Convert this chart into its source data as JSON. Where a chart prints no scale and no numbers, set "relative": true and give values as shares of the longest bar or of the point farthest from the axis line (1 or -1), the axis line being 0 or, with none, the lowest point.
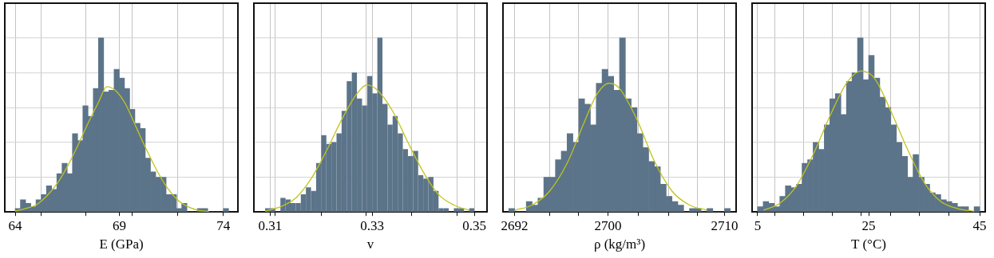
{
  "chart_data": [
    {
      "type": "histogram",
      "xlabel": "E (GPa)",
      "relative": true,
      "grid": true,
      "legend": false,
      "xlim": [
        63.5,
        74.7
      ],
      "xticks": [
        64,
        {
          "value": 65.25,
          "label": null
        },
        {
          "value": 67.4,
          "label": null
        },
        69,
        {
          "value": 69.6,
          "label": null
        },
        {
          "value": 71.8,
          "label": null
        },
        74
      ],
      "series": [
        {
          "type": "histogram",
          "color": "#5c7489",
          "bins": [
            64,
            64.25,
            64.5,
            64.75,
            65,
            65.25,
            65.5,
            65.75,
            66,
            66.25,
            66.5,
            66.75,
            67,
            67.25,
            67.5,
            67.75,
            68,
            68.25,
            68.5,
            68.75,
            69,
            69.25,
            69.5,
            69.75,
            70,
            70.25,
            70.5,
            70.75,
            71,
            71.25,
            71.5,
            71.75,
            72,
            72.25,
            72.5,
            72.75,
            73,
            73.25,
            73.5,
            73.75,
            74,
            74.25
          ],
          "values": [
            0.02,
            0.07,
            0.05,
            0.03,
            0.07,
            0.1,
            0.15,
            0.13,
            0.22,
            0.28,
            0.22,
            0.45,
            0.41,
            0.61,
            0.55,
            0.71,
            1.0,
            0.69,
            0.7,
            0.82,
            0.77,
            0.71,
            0.59,
            0.51,
            0.48,
            0.31,
            0.23,
            0.2,
            0.2,
            0.1,
            0.1,
            0.02,
            0.05,
            0,
            0,
            0.02,
            0.02,
            0,
            0,
            0,
            0.02
          ]
        },
        {
          "type": "line",
          "color": "#c2c41c",
          "x": [
            64,
            64.5,
            65,
            65.5,
            66,
            66.5,
            67,
            67.5,
            68,
            68.4,
            68.8,
            69.3,
            69.8,
            70.3,
            70.8,
            71.3,
            71.8,
            72.3,
            72.8,
            73.3
          ],
          "values": [
            0.005,
            0.02,
            0.04,
            0.09,
            0.16,
            0.26,
            0.38,
            0.51,
            0.63,
            0.72,
            0.7,
            0.62,
            0.49,
            0.36,
            0.24,
            0.14,
            0.07,
            0.03,
            0.01,
            0.003
          ]
        }
      ]
    },
    {
      "type": "histogram",
      "xlabel": "v",
      "relative": true,
      "grid": true,
      "legend": false,
      "xlim": [
        0.3068,
        0.3525
      ],
      "xticks": [
        0.31,
        {
          "value": 0.3109,
          "label": null
        },
        {
          "value": 0.32,
          "label": null
        },
        {
          "value": 0.3288,
          "label": null
        },
        0.33,
        {
          "value": 0.3377,
          "label": null
        },
        {
          "value": 0.3466,
          "label": null
        },
        0.35
      ],
      "series": [
        {
          "type": "histogram",
          "color": "#5c7489",
          "bins": [
            0.309,
            0.31,
            0.311,
            0.312,
            0.313,
            0.314,
            0.315,
            0.316,
            0.317,
            0.318,
            0.319,
            0.32,
            0.321,
            0.322,
            0.323,
            0.324,
            0.325,
            0.326,
            0.327,
            0.328,
            0.329,
            0.33,
            0.331,
            0.332,
            0.333,
            0.334,
            0.335,
            0.336,
            0.337,
            0.338,
            0.339,
            0.34,
            0.341,
            0.342,
            0.343,
            0.344,
            0.345,
            0.346,
            0.347,
            0.348,
            0.349,
            0.35
          ],
          "values": [
            0.02,
            0.02,
            0,
            0.08,
            0.07,
            0.05,
            0.05,
            0.1,
            0.14,
            0.12,
            0.28,
            0.44,
            0.39,
            0.4,
            0.45,
            0.58,
            0.75,
            0.8,
            0.65,
            0.61,
            0.78,
            0.68,
            1.0,
            0.62,
            0.5,
            0.55,
            0.45,
            0.36,
            0.32,
            0.35,
            0.21,
            0.19,
            0.2,
            0.12,
            0.02,
            0.02,
            0,
            0.02,
            0.02,
            0,
            0.02
          ]
        },
        {
          "type": "line",
          "color": "#c2c41c",
          "x": [
            0.309,
            0.312,
            0.315,
            0.318,
            0.321,
            0.324,
            0.327,
            0.329,
            0.331,
            0.334,
            0.337,
            0.34,
            0.343,
            0.346,
            0.349
          ],
          "values": [
            0.005,
            0.03,
            0.08,
            0.19,
            0.35,
            0.53,
            0.68,
            0.73,
            0.7,
            0.58,
            0.4,
            0.23,
            0.1,
            0.04,
            0.01
          ]
        }
      ]
    },
    {
      "type": "histogram",
      "xlabel": "ρ (kg/m³)",
      "relative": true,
      "grid": true,
      "legend": false,
      "xlim": [
        2691,
        2711
      ],
      "xticks": [
        2692,
        {
          "value": 2695,
          "label": null
        },
        {
          "value": 2697.5,
          "label": null
        },
        2700,
        {
          "value": 2702.6,
          "label": null
        },
        {
          "value": 2705.2,
          "label": null
        },
        {
          "value": 2707.7,
          "label": null
        },
        2710
      ],
      "series": [
        {
          "type": "histogram",
          "color": "#5c7489",
          "bins": [
            2691.5,
            2692,
            2692.5,
            2693,
            2693.5,
            2694,
            2694.5,
            2695,
            2695.5,
            2696,
            2696.5,
            2697,
            2697.5,
            2698,
            2698.5,
            2699,
            2699.5,
            2700,
            2700.5,
            2701,
            2701.5,
            2702,
            2702.5,
            2703,
            2703.5,
            2704,
            2704.5,
            2705,
            2705.5,
            2706,
            2706.5,
            2707,
            2707.5,
            2708,
            2708.5,
            2709,
            2709.5,
            2710,
            2710.5
          ],
          "values": [
            0.02,
            0,
            0,
            0.06,
            0.04,
            0.08,
            0.2,
            0.2,
            0.3,
            0.35,
            0.45,
            0.4,
            0.65,
            0.62,
            0.5,
            0.74,
            0.82,
            0.78,
            0.7,
            1.0,
            0.65,
            0.6,
            0.45,
            0.37,
            0.29,
            0.26,
            0.16,
            0.09,
            0.06,
            0.04,
            0,
            0.02,
            0.02,
            0,
            0.02,
            0,
            0,
            0.02
          ]
        },
        {
          "type": "line",
          "color": "#c2c41c",
          "x": [
            2692,
            2693.5,
            2695,
            2696.5,
            2698,
            2699,
            2700.1,
            2701,
            2702.5,
            2704,
            2705.5,
            2707,
            2708.5
          ],
          "values": [
            0.01,
            0.04,
            0.12,
            0.28,
            0.52,
            0.67,
            0.74,
            0.71,
            0.53,
            0.29,
            0.12,
            0.04,
            0.01
          ]
        }
      ]
    },
    {
      "type": "histogram",
      "xlabel": "T (°C)",
      "relative": true,
      "grid": true,
      "legend": false,
      "xlim": [
        4,
        46
      ],
      "xticks": [
        5,
        {
          "value": 8.1,
          "label": null
        },
        {
          "value": 13.3,
          "label": null
        },
        {
          "value": 18.5,
          "label": null
        },
        {
          "value": 23.7,
          "label": null
        },
        25,
        {
          "value": 28.9,
          "label": null
        },
        {
          "value": 34.1,
          "label": null
        },
        {
          "value": 39.4,
          "label": null
        },
        45
      ],
      "series": [
        {
          "type": "histogram",
          "color": "#5c7489",
          "bins": [
            5,
            6,
            7,
            8,
            9,
            10,
            11,
            12,
            13,
            14,
            15,
            16,
            17,
            18,
            19,
            20,
            21,
            22,
            23,
            24,
            25,
            26,
            27,
            28,
            29,
            30,
            31,
            32,
            33,
            34,
            35,
            36,
            37,
            38,
            39,
            40,
            41,
            42,
            43,
            44,
            45
          ],
          "values": [
            0.03,
            0.06,
            0.05,
            0.03,
            0.09,
            0.15,
            0.14,
            0.16,
            0.28,
            0.3,
            0.4,
            0.36,
            0.5,
            0.65,
            0.68,
            0.56,
            0.75,
            0.8,
            1.0,
            0.76,
            0.9,
            0.77,
            0.66,
            0.6,
            0.5,
            0.4,
            0.32,
            0.2,
            0.33,
            0.2,
            0.16,
            0.11,
            0.1,
            0.07,
            0.06,
            0.05,
            0.03,
            0.03,
            0,
            0.03
          ]
        },
        {
          "type": "line",
          "color": "#c2c41c",
          "x": [
            6,
            9,
            12,
            15,
            18,
            21,
            23.7,
            26,
            29,
            32,
            35,
            38,
            41,
            44
          ],
          "values": [
            0.01,
            0.05,
            0.15,
            0.33,
            0.55,
            0.74,
            0.81,
            0.77,
            0.58,
            0.36,
            0.17,
            0.06,
            0.02,
            0.004
          ]
        }
      ]
    }
  ]
}
